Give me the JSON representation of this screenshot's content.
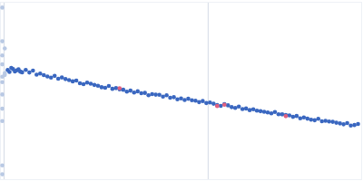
{
  "chart_data": {
    "type": "scatter",
    "tick_labels": false,
    "grid": false,
    "xlim": [
      0,
      100
    ],
    "ylim": [
      0,
      100
    ],
    "reference_lines": [
      1,
      57.5
    ],
    "series": [
      {
        "color": "#b9c9e4",
        "marker": "circle",
        "x": [
          0.5,
          0.5,
          0.5,
          0.5,
          0.5,
          0.5,
          0.5,
          0.5,
          0.5,
          0.5,
          0.5,
          1.2,
          1.2,
          1.2
        ],
        "values": [
          97,
          78,
          70,
          65,
          58,
          55,
          48,
          40,
          33,
          8,
          3,
          74,
          60,
          59
        ]
      },
      {
        "color": "#3a67c0",
        "marker": "circle",
        "x": [
          2,
          2.5,
          3,
          3.5,
          4,
          4.5,
          5,
          5.5,
          6,
          7,
          8,
          9,
          10,
          11,
          12,
          13,
          14,
          15,
          16,
          17,
          18,
          19,
          20,
          21,
          22,
          23,
          24,
          25,
          26,
          27,
          28,
          29,
          30,
          31,
          32,
          33,
          34,
          35,
          36,
          37,
          38,
          39,
          40,
          41,
          42,
          43,
          44,
          45,
          46,
          47,
          48,
          49,
          50,
          51,
          52,
          53,
          54,
          55,
          56,
          57,
          58,
          59,
          60,
          61,
          62,
          63,
          64,
          65,
          66,
          67,
          68,
          69,
          70,
          71,
          72,
          73,
          74,
          75,
          76,
          77,
          78,
          79,
          80,
          81,
          82,
          83,
          84,
          85,
          86,
          87,
          88,
          89,
          90,
          91,
          92,
          93,
          94,
          95,
          96,
          97,
          98,
          99
        ],
        "values": [
          61.8,
          60.7,
          63,
          62.3,
          61,
          61.6,
          62.2,
          60.9,
          60.5,
          61.9,
          60.4,
          61.5,
          59.2,
          59.8,
          58.9,
          58.2,
          57.5,
          58.5,
          56.9,
          57.6,
          56.7,
          56.1,
          55.4,
          55.9,
          54.3,
          53.8,
          54.7,
          54.1,
          53.4,
          52.9,
          52.1,
          51.8,
          52.8,
          51.2,
          51.6,
          50.9,
          50.7,
          49.6,
          50.2,
          49.1,
          49.8,
          48.7,
          48.9,
          47.6,
          48.2,
          47.9,
          47.8,
          46.8,
          47.6,
          46.2,
          46.5,
          45.3,
          45.8,
          44.9,
          45.6,
          44.8,
          44.5,
          43.7,
          44.3,
          43.2,
          43.5,
          42.8,
          42.1,
          41.6,
          42.6,
          41.9,
          40.9,
          40.4,
          41.2,
          39.8,
          40.1,
          39.2,
          39.7,
          38.9,
          38.6,
          38.3,
          37.9,
          37.4,
          38.1,
          36.9,
          36.8,
          36.5,
          36.2,
          35.4,
          35.9,
          34.6,
          35.1,
          34.4,
          33.8,
          33.5,
          34.3,
          32.9,
          33.2,
          32.8,
          32.6,
          32.1,
          31.7,
          31.2,
          31.9,
          30.5,
          30.8,
          31.4
        ]
      },
      {
        "color": "#e06080",
        "marker": "circle",
        "x": [
          33,
          60,
          62,
          79
        ],
        "values": [
          51.5,
          41.5,
          42.2,
          35.8
        ]
      }
    ]
  }
}
